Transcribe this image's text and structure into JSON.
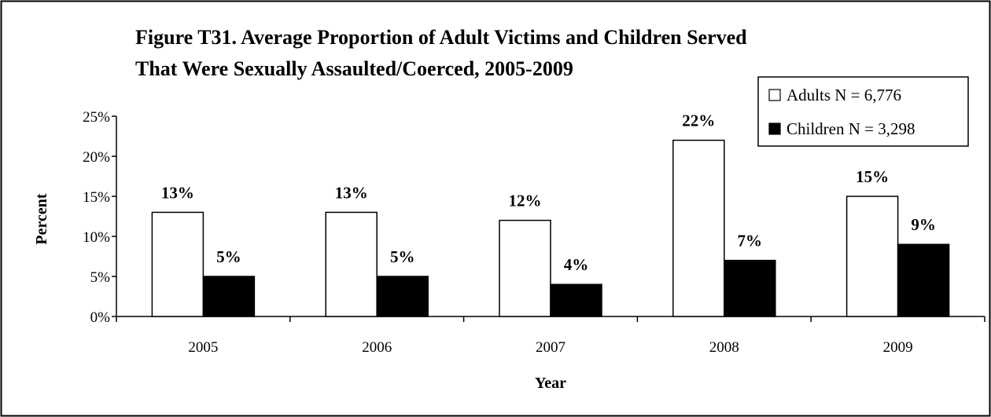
{
  "chart_data": {
    "type": "bar",
    "title_line1": "Figure T31.  Average Proportion of Adult Victims and Children Served",
    "title_line2": "That Were Sexually Assaulted/Coerced, 2005-2009",
    "xlabel": "Year",
    "ylabel": "Percent",
    "categories": [
      "2005",
      "2006",
      "2007",
      "2008",
      "2009"
    ],
    "ylim": [
      0,
      25
    ],
    "yticks": [
      0,
      5,
      10,
      15,
      20,
      25
    ],
    "ytick_labels": [
      "0%",
      "5%",
      "10%",
      "15%",
      "20%",
      "25%"
    ],
    "grid": false,
    "legend_position": "top-right",
    "series": [
      {
        "name": "Adults  N = 6,776",
        "color": "#ffffff",
        "values": [
          13,
          13,
          12,
          22,
          15
        ],
        "labels": [
          "13%",
          "13%",
          "12%",
          "22%",
          "15%"
        ]
      },
      {
        "name": "Children  N = 3,298",
        "color": "#000000",
        "values": [
          5,
          5,
          4,
          7,
          9
        ],
        "labels": [
          "5%",
          "5%",
          "4%",
          "7%",
          "9%"
        ]
      }
    ]
  }
}
